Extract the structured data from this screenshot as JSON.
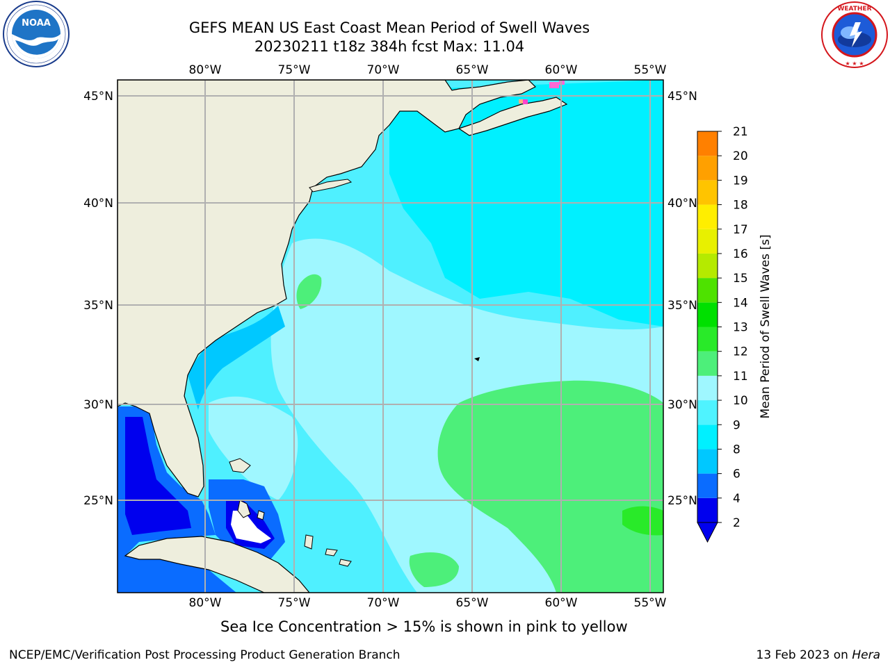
{
  "header": {
    "title_line1": "GEFS MEAN US East Coast Mean Period of Swell Waves",
    "title_line2": "20230211 t18z 384h fcst   Max: 11.04"
  },
  "logos": {
    "left": {
      "icon": "noaa-logo",
      "text": "NOAA",
      "ring_text": "NATIONAL OCEANIC AND ATMOSPHERIC ADMINISTRATION · U.S. DEPARTMENT OF COMMERCE"
    },
    "right": {
      "icon": "nws-logo",
      "ring_text": "NATIONAL WEATHER SERVICE"
    }
  },
  "map": {
    "lon_labels": [
      "80°W",
      "75°W",
      "70°W",
      "65°W",
      "60°W",
      "55°W"
    ],
    "lat_labels": [
      "45°N",
      "40°N",
      "35°N",
      "30°N",
      "25°N"
    ],
    "colors": {
      "land": "#eeeedd",
      "grid": "#b0b0b0",
      "ocean_base": "#4ff0ff"
    }
  },
  "colorbar": {
    "label": "Mean Period of Swell Waves [s]",
    "ticks": [
      "2",
      "4",
      "6",
      "8",
      "9",
      "10",
      "11",
      "12",
      "13",
      "14",
      "15",
      "16",
      "17",
      "18",
      "19",
      "20",
      "21"
    ],
    "colors": [
      "#0000ee",
      "#0a6cff",
      "#00c8ff",
      "#00f0ff",
      "#4ff3ff",
      "#9ff7ff",
      "#4def7a",
      "#29ea29",
      "#00e000",
      "#4ee200",
      "#b5ea00",
      "#e8f000",
      "#ffee00",
      "#ffc400",
      "#ffa000",
      "#ff8000",
      "#ff4b00",
      "#ff1e00",
      "#ff0000"
    ],
    "extend_color": "#0000ee"
  },
  "subtitle": "Sea Ice Concentration > 15% is shown in pink to yellow",
  "footer": {
    "left": "NCEP/EMC/Verification Post Processing Product Generation Branch",
    "right_date": "13 Feb 2023 on ",
    "right_host": "Hera"
  }
}
